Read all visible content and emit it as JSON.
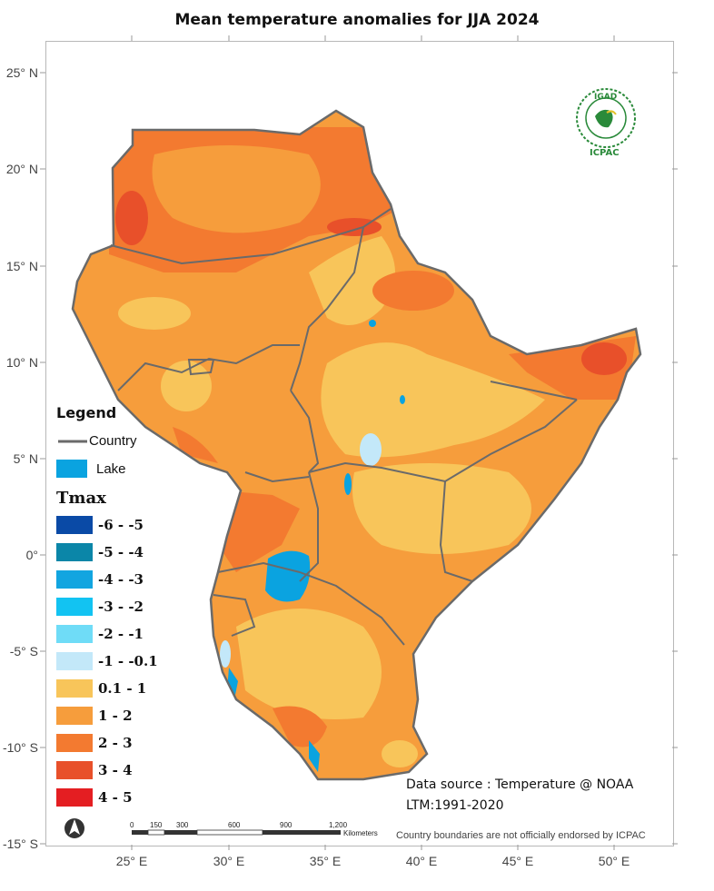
{
  "title": "Mean temperature anomalies for JJA 2024",
  "latitude_labels": [
    "25° N",
    "20° N",
    "15° N",
    "10° N",
    "5° N",
    "0°",
    "-5° S",
    "-10° S",
    "-15° S"
  ],
  "longitude_labels": [
    "25° E",
    "30° E",
    "35° E",
    "40° E",
    "45° E",
    "50° E"
  ],
  "legend": {
    "title": "Legend",
    "country_label": "Country",
    "lake_label": "Lake",
    "tmax_title": "Tmax",
    "classes": [
      {
        "label": "-6 - -5",
        "color": "#0a4aa6"
      },
      {
        "label": "-5 - -4",
        "color": "#0b86a8"
      },
      {
        "label": "-4 - -3",
        "color": "#12a5e0"
      },
      {
        "label": "-3 - -2",
        "color": "#12c3f2"
      },
      {
        "label": "-2 - -1",
        "color": "#6fdcf7"
      },
      {
        "label": "-1 - -0.1",
        "color": "#c3e8f9"
      },
      {
        "label": "0.1 - 1",
        "color": "#f8c55a"
      },
      {
        "label": "1 - 2",
        "color": "#f69d3c"
      },
      {
        "label": "2 - 3",
        "color": "#f37a30"
      },
      {
        "label": "3 - 4",
        "color": "#e8502a"
      },
      {
        "label": "4 - 5",
        "color": "#e41e22"
      }
    ],
    "lake_color": "#0aa3e0",
    "country_color": "#6a6a6a"
  },
  "scale_bar": {
    "ticks": [
      "0",
      "150",
      "300",
      "600",
      "900",
      "1,200"
    ],
    "unit": "Kilometers"
  },
  "data_source": "Data source : Temperature @ NOAA",
  "ltm": "LTM:1991-2020",
  "disclaimer": "Country boundaries are not officially endorsed by ICPAC",
  "logo": {
    "top": "IGAD",
    "bottom": "ICPAC"
  },
  "north_arrow": "north-arrow"
}
